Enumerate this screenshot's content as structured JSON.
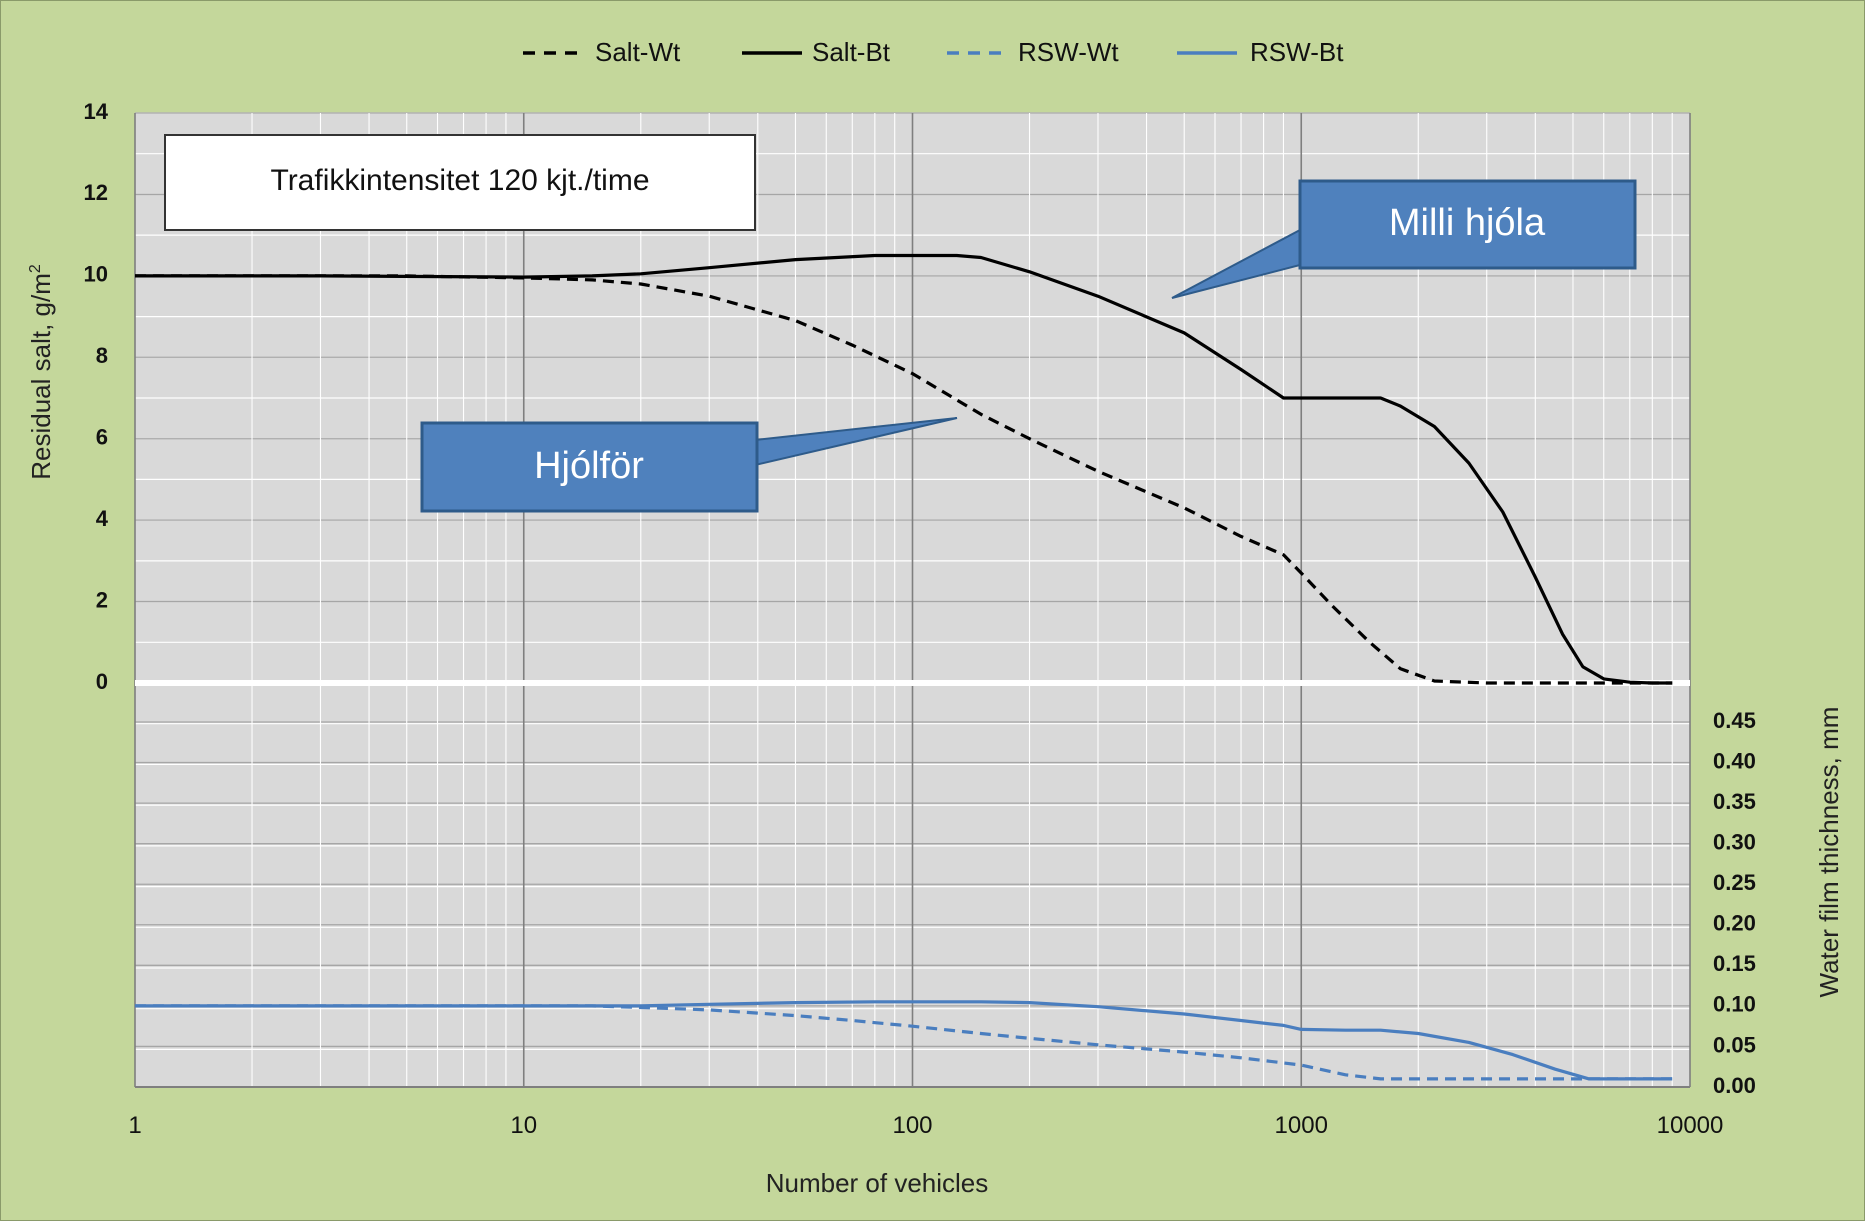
{
  "chart_data": {
    "type": "line",
    "x_scale": "log",
    "xlim": [
      1,
      10000
    ],
    "xlabel": "Number of vehicles",
    "x_ticks": [
      "1",
      "10",
      "100",
      "1000",
      "10000"
    ],
    "y_left": {
      "label_main": "Residual salt, g/m",
      "label_sup": "2",
      "ylim": [
        0,
        14
      ],
      "ticks": [
        "0",
        "2",
        "4",
        "6",
        "8",
        "10",
        "12",
        "14"
      ]
    },
    "y_right": {
      "label": "Water film thichness, mm",
      "ylim": [
        0,
        0.45
      ],
      "ticks": [
        "0.00",
        "0.05",
        "0.10",
        "0.15",
        "0.20",
        "0.25",
        "0.30",
        "0.35",
        "0.40",
        "0.45"
      ]
    },
    "grid": true,
    "legend_position": "top-center",
    "series": [
      {
        "name": "Salt-Wt",
        "axis": "left",
        "style": "dashed",
        "color": "#000000",
        "x": [
          1,
          5,
          10,
          15,
          20,
          30,
          50,
          70,
          100,
          150,
          200,
          300,
          500,
          700,
          900,
          1000,
          1200,
          1500,
          1800,
          2200,
          3000,
          5000,
          7000,
          9000
        ],
        "y": [
          10.0,
          10.0,
          9.95,
          9.9,
          9.8,
          9.5,
          8.9,
          8.3,
          7.6,
          6.6,
          6.0,
          5.2,
          4.3,
          3.6,
          3.15,
          2.7,
          1.9,
          1.0,
          0.35,
          0.05,
          0.0,
          0.0,
          0.0,
          0.0
        ]
      },
      {
        "name": "Salt-Bt",
        "axis": "left",
        "style": "solid",
        "color": "#000000",
        "x": [
          1,
          3,
          10,
          15,
          20,
          30,
          50,
          80,
          100,
          130,
          150,
          200,
          300,
          500,
          700,
          900,
          1000,
          1300,
          1600,
          1800,
          2200,
          2700,
          3300,
          4000,
          4700,
          5300,
          6000,
          7000,
          8000,
          9000
        ],
        "y": [
          10.0,
          10.0,
          9.97,
          10.0,
          10.05,
          10.2,
          10.4,
          10.5,
          10.5,
          10.5,
          10.45,
          10.1,
          9.5,
          8.6,
          7.7,
          7.0,
          7.0,
          7.0,
          7.0,
          6.8,
          6.3,
          5.4,
          4.2,
          2.6,
          1.2,
          0.4,
          0.1,
          0.02,
          0.0,
          0.0
        ]
      },
      {
        "name": "RSW-Wt",
        "axis": "right",
        "style": "dashed",
        "color": "#4a7ebf",
        "x": [
          1,
          5,
          10,
          15,
          20,
          30,
          50,
          70,
          100,
          150,
          200,
          300,
          500,
          700,
          1000,
          1300,
          1600,
          2000,
          3000,
          5000,
          7000,
          9000
        ],
        "y": [
          0.1,
          0.1,
          0.1,
          0.1,
          0.098,
          0.095,
          0.088,
          0.082,
          0.075,
          0.066,
          0.06,
          0.052,
          0.043,
          0.036,
          0.027,
          0.015,
          0.01,
          0.01,
          0.01,
          0.01,
          0.01,
          0.01
        ]
      },
      {
        "name": "RSW-Bt",
        "axis": "right",
        "style": "solid",
        "color": "#4a7ebf",
        "x": [
          1,
          5,
          10,
          20,
          30,
          50,
          80,
          100,
          150,
          200,
          300,
          500,
          700,
          900,
          1000,
          1300,
          1600,
          2000,
          2700,
          3500,
          4500,
          5500,
          7000,
          9000
        ],
        "y": [
          0.1,
          0.1,
          0.1,
          0.1,
          0.102,
          0.104,
          0.105,
          0.105,
          0.105,
          0.104,
          0.099,
          0.09,
          0.082,
          0.076,
          0.071,
          0.07,
          0.07,
          0.066,
          0.055,
          0.04,
          0.022,
          0.01,
          0.01,
          0.01
        ]
      }
    ],
    "annotations": {
      "note_box": "Trafikkintensitet 120 kjt./time",
      "callout_upper": "Milli hjóla",
      "callout_lower": "Hjólför"
    }
  },
  "colors": {
    "outer_background": "#c4d79b",
    "plot_background": "#d9d9d9",
    "callout_fill": "#4f81bd",
    "callout_border": "#2e5b8a",
    "separator": "#ffffff"
  }
}
